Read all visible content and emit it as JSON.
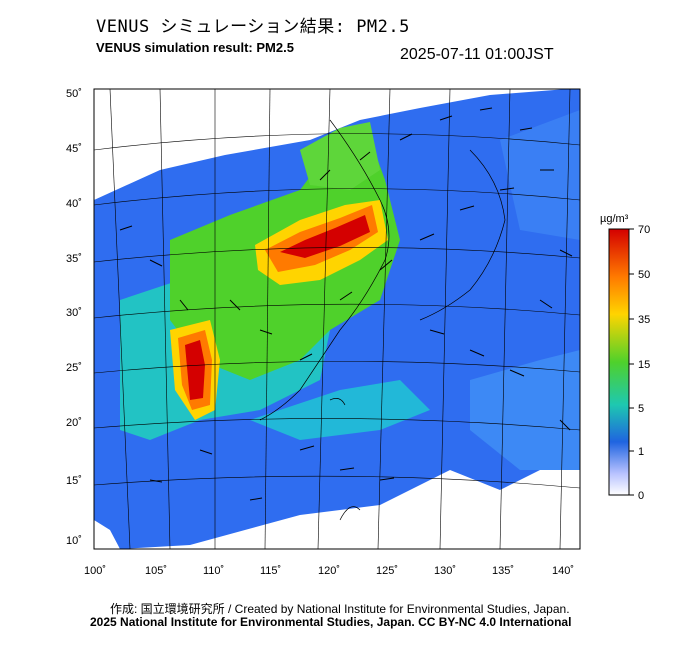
{
  "header": {
    "title_jp": "VENUS シミュレーション結果: PM2.5",
    "title_en": "VENUS simulation result: PM2.5",
    "timestamp": "2025-07-11 01:00JST"
  },
  "map": {
    "lat_ticks": [
      "50˚",
      "45˚",
      "40˚",
      "35˚",
      "30˚",
      "25˚",
      "20˚",
      "15˚",
      "10˚"
    ],
    "lon_ticks": [
      "100˚",
      "105˚",
      "110˚",
      "115˚",
      "120˚",
      "125˚",
      "130˚",
      "135˚",
      "140˚"
    ]
  },
  "colorbar": {
    "unit": "µg/m³",
    "labels": [
      "70",
      "50",
      "35",
      "15",
      "5",
      "1",
      "0"
    ],
    "colors": [
      "#d40000",
      "#ff7a00",
      "#ffd400",
      "#4fd12b",
      "#1ec8b0",
      "#1f64e0",
      "#b9c3ff",
      "#ffffff"
    ]
  },
  "footer": {
    "credit": "作成: 国立環境研究所 / Created by National Institute for Environmental Studies, Japan.",
    "license": "2025 National Institute for Environmental Studies, Japan. CC BY-NC 4.0 International"
  }
}
